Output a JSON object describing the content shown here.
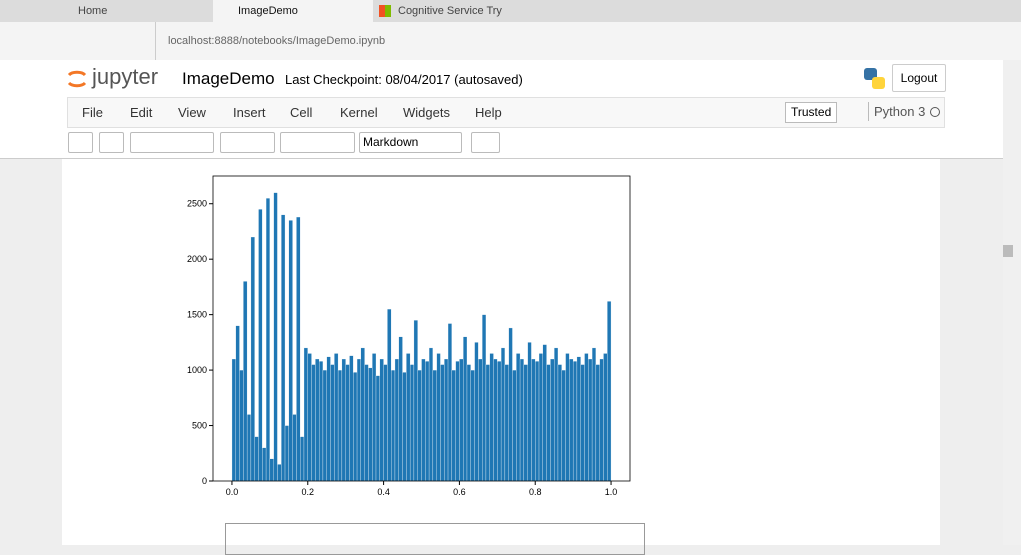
{
  "browser": {
    "tabs": [
      "Home",
      "ImageDemo",
      "Cognitive Service Try experi"
    ],
    "url": "localhost:8888/notebooks/ImageDemo.ipynb"
  },
  "header": {
    "logo": "jupyter",
    "notebook": "ImageDemo",
    "checkpoint": "Last Checkpoint: 08/04/2017 (autosaved)",
    "logout": "Logout"
  },
  "menu": {
    "items": [
      "File",
      "Edit",
      "View",
      "Insert",
      "Cell",
      "Kernel",
      "Widgets",
      "Help"
    ],
    "trusted": "Trusted",
    "kernel": "Python 3"
  },
  "toolbar": {
    "cell_type": "Markdown"
  },
  "chart_data": {
    "type": "histogram",
    "color": "#1f77b4",
    "bins": [
      0,
      0.01,
      0.02,
      0.03,
      0.04,
      0.05,
      0.06,
      0.07,
      0.08,
      0.09,
      0.1,
      0.11,
      0.12,
      0.13,
      0.14,
      0.15,
      0.16,
      0.17,
      0.18,
      0.19,
      0.2,
      0.21,
      0.22,
      0.23,
      0.24,
      0.25,
      0.26,
      0.27,
      0.28,
      0.29,
      0.3,
      0.31,
      0.32,
      0.33,
      0.34,
      0.35,
      0.36,
      0.37,
      0.38,
      0.39,
      0.4,
      0.41,
      0.42,
      0.43,
      0.44,
      0.45,
      0.46,
      0.47,
      0.48,
      0.49,
      0.5,
      0.51,
      0.52,
      0.53,
      0.54,
      0.55,
      0.56,
      0.57,
      0.58,
      0.59,
      0.6,
      0.61,
      0.62,
      0.63,
      0.64,
      0.65,
      0.66,
      0.67,
      0.68,
      0.69,
      0.7,
      0.71,
      0.72,
      0.73,
      0.74,
      0.75,
      0.76,
      0.77,
      0.78,
      0.79,
      0.8,
      0.81,
      0.82,
      0.83,
      0.84,
      0.85,
      0.86,
      0.87,
      0.88,
      0.89,
      0.9,
      0.91,
      0.92,
      0.93,
      0.94,
      0.95,
      0.96,
      0.97,
      0.98,
      0.99,
      1
    ],
    "values": [
      1100,
      1400,
      1000,
      1800,
      600,
      2200,
      400,
      2450,
      300,
      2550,
      200,
      2600,
      150,
      2400,
      500,
      2350,
      600,
      2380,
      400,
      1200,
      1150,
      1050,
      1100,
      1080,
      1000,
      1120,
      1050,
      1150,
      1000,
      1100,
      1050,
      1130,
      980,
      1100,
      1200,
      1050,
      1020,
      1150,
      950,
      1100,
      1050,
      1550,
      1000,
      1100,
      1300,
      980,
      1150,
      1050,
      1450,
      1000,
      1100,
      1080,
      1200,
      1000,
      1150,
      1050,
      1100,
      1420,
      1000,
      1080,
      1100,
      1300,
      1050,
      1000,
      1250,
      1100,
      1500,
      1050,
      1150,
      1100,
      1080,
      1200,
      1050,
      1380,
      1000,
      1150,
      1100,
      1050,
      1250,
      1100,
      1080,
      1150,
      1230,
      1050,
      1100,
      1200,
      1050,
      1000,
      1150,
      1100,
      1080,
      1120,
      1050,
      1150,
      1100,
      1200,
      1050,
      1100,
      1150,
      1620
    ],
    "xlim": [
      -0.05,
      1.05
    ],
    "ylim": [
      0,
      2750
    ],
    "xticks": [
      {
        "value": 0,
        "label": "0.0"
      },
      0.2,
      0.4,
      0.6,
      0.8,
      {
        "value": 1,
        "label": "1.0"
      }
    ],
    "yticks": [
      0,
      500,
      1000,
      1500,
      2000,
      2500
    ]
  }
}
